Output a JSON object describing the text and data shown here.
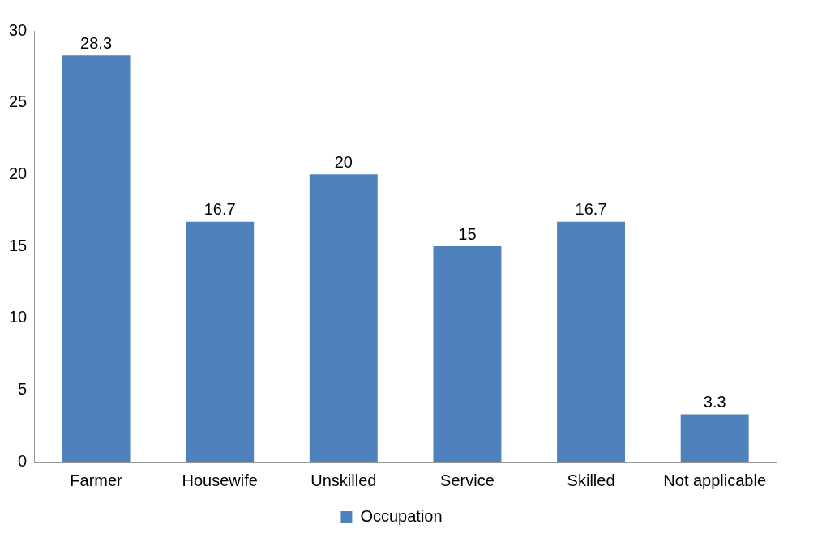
{
  "chart_data": {
    "type": "bar",
    "categories": [
      "Farmer",
      "Housewife",
      "Unskilled",
      "Service",
      "Skilled",
      "Not applicable"
    ],
    "series": [
      {
        "name": "Occupation",
        "color": "#4f81bd",
        "values": [
          28.3,
          16.7,
          20,
          15,
          16.7,
          3.3
        ]
      }
    ],
    "ylim": [
      0,
      30
    ],
    "yticks": [
      0,
      5,
      10,
      15,
      20,
      25,
      30
    ],
    "grid": false,
    "legend": "bottom",
    "data_labels": true
  }
}
